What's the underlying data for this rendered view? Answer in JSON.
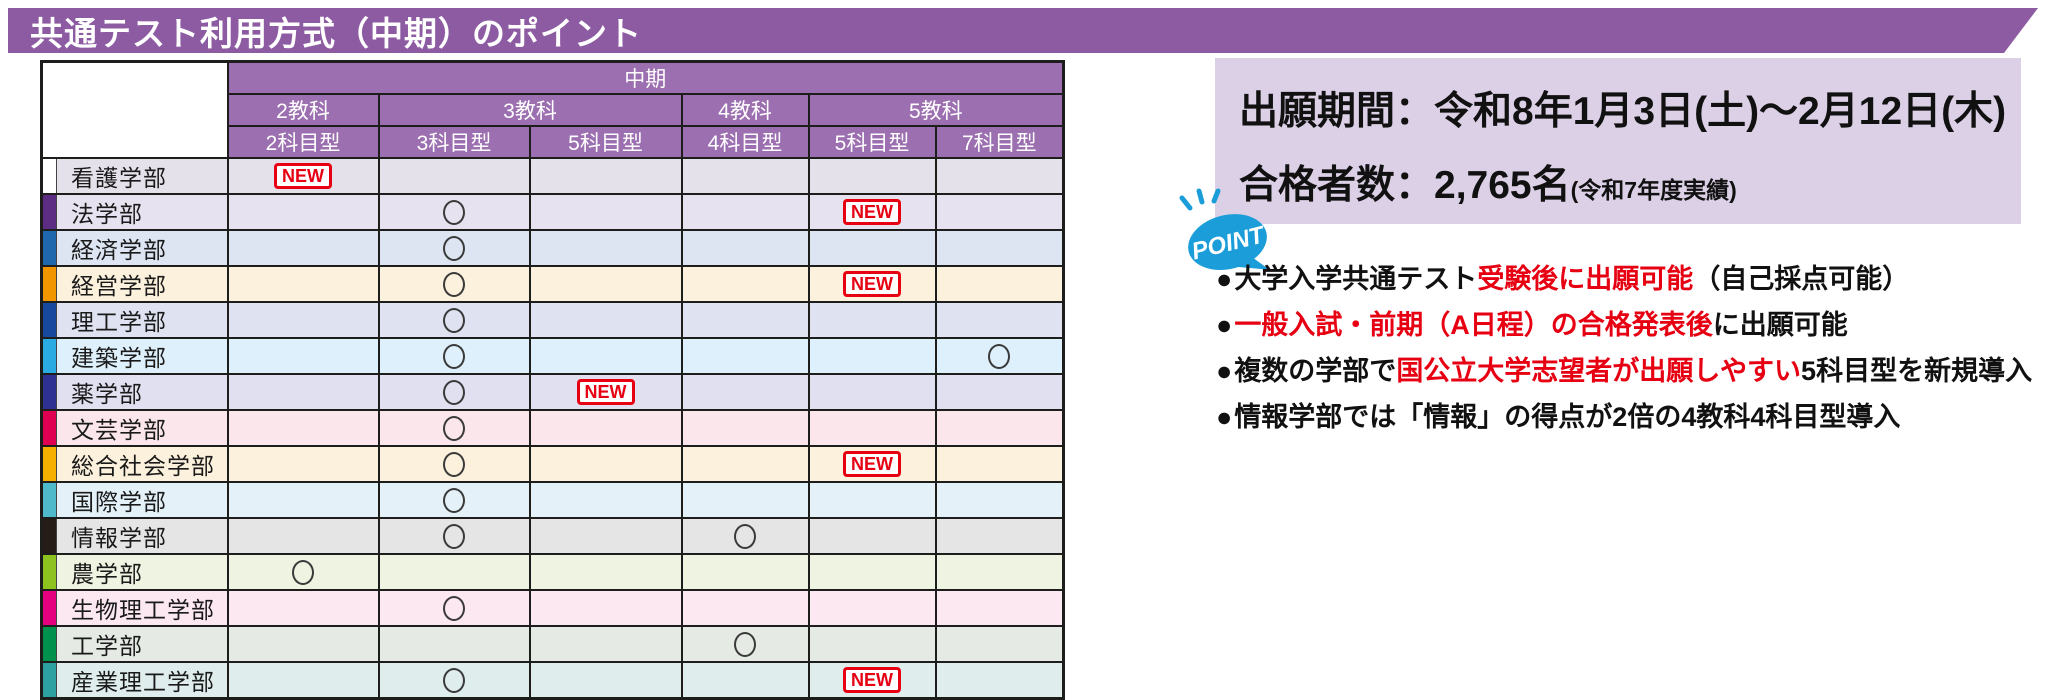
{
  "title": "共通テスト利用方式（中期）のポイント",
  "table": {
    "period_header": "中期",
    "groups": [
      {
        "label": "2教科",
        "span": 1
      },
      {
        "label": "3教科",
        "span": 2
      },
      {
        "label": "4教科",
        "span": 1
      },
      {
        "label": "5教科",
        "span": 2
      }
    ],
    "columns": [
      "2科目型",
      "3科目型",
      "5科目型",
      "4科目型",
      "5科目型",
      "7科目型"
    ],
    "rows": [
      {
        "name": "看護学部",
        "tab_color": "#ffffff",
        "row_color": "#e5e1ea",
        "marks": [
          "NEW",
          "",
          "",
          "",
          "",
          ""
        ]
      },
      {
        "name": "法学部",
        "tab_color": "#5c2d83",
        "row_color": "#e7e2ef",
        "marks": [
          "",
          "○",
          "",
          "",
          "NEW",
          ""
        ]
      },
      {
        "name": "経済学部",
        "tab_color": "#2068ae",
        "row_color": "#dde5f2",
        "marks": [
          "",
          "○",
          "",
          "",
          "",
          ""
        ]
      },
      {
        "name": "経営学部",
        "tab_color": "#f29600",
        "row_color": "#fcf1dc",
        "marks": [
          "",
          "○",
          "",
          "",
          "NEW",
          ""
        ]
      },
      {
        "name": "理工学部",
        "tab_color": "#17499e",
        "row_color": "#dfe3f1",
        "marks": [
          "",
          "○",
          "",
          "",
          "",
          ""
        ]
      },
      {
        "name": "建築学部",
        "tab_color": "#2aabe2",
        "row_color": "#def0fb",
        "marks": [
          "",
          "○",
          "",
          "",
          "",
          "○"
        ]
      },
      {
        "name": "薬学部",
        "tab_color": "#2f3192",
        "row_color": "#e1e0f1",
        "marks": [
          "",
          "○",
          "NEW",
          "",
          "",
          ""
        ]
      },
      {
        "name": "文芸学部",
        "tab_color": "#e00052",
        "row_color": "#fae6eb",
        "marks": [
          "",
          "○",
          "",
          "",
          "",
          ""
        ]
      },
      {
        "name": "総合社会学部",
        "tab_color": "#f6b100",
        "row_color": "#fcf1dc",
        "marks": [
          "",
          "○",
          "",
          "",
          "NEW",
          ""
        ]
      },
      {
        "name": "国際学部",
        "tab_color": "#4fbac9",
        "row_color": "#e4f1f9",
        "marks": [
          "",
          "○",
          "",
          "",
          "",
          ""
        ]
      },
      {
        "name": "情報学部",
        "tab_color": "#251c17",
        "row_color": "#e6e5e6",
        "marks": [
          "",
          "○",
          "",
          "○",
          "",
          ""
        ]
      },
      {
        "name": "農学部",
        "tab_color": "#8dc21f",
        "row_color": "#eff3e1",
        "marks": [
          "○",
          "",
          "",
          "",
          "",
          ""
        ]
      },
      {
        "name": "生物理工学部",
        "tab_color": "#e4007f",
        "row_color": "#fce8f1",
        "marks": [
          "",
          "○",
          "",
          "",
          "",
          ""
        ]
      },
      {
        "name": "工学部",
        "tab_color": "#00914d",
        "row_color": "#e5ebe4",
        "marks": [
          "",
          "",
          "",
          "○",
          "",
          ""
        ]
      },
      {
        "name": "産業理工学部",
        "tab_color": "#2da0a1",
        "row_color": "#dfeeec",
        "marks": [
          "",
          "○",
          "",
          "",
          "NEW",
          ""
        ]
      }
    ]
  },
  "info_panel": {
    "application_period_label": "出願期間：",
    "application_period_value": "令和8年1月3日(土)～2月12日(木)",
    "passers_label": "合格者数：",
    "passers_value": "2,765名",
    "passers_note": "(令和7年度実績)"
  },
  "point_badge": "POINT",
  "bullet_marker": "●",
  "bullets": [
    [
      {
        "t": "大学入学共通テスト",
        "red": false
      },
      {
        "t": "受験後に出願可能",
        "red": true
      },
      {
        "t": "（自己採点可能）",
        "red": false
      }
    ],
    [
      {
        "t": "一般入試・前期（A日程）の合格発表後",
        "red": true
      },
      {
        "t": "に出願可能",
        "red": false
      }
    ],
    [
      {
        "t": "複数の学部で",
        "red": false
      },
      {
        "t": "国公立大学志望者が出願しやすい",
        "red": true
      },
      {
        "t": "5科目型を新規導入",
        "red": false
      }
    ],
    [
      {
        "t": "情報学部では「情報」の得点が2倍の4教科4科目型導入",
        "red": false
      }
    ]
  ],
  "colors": {
    "title_bar": "#8d5ba2",
    "table_header": "#9c6fb0",
    "info_panel_bg": "#dcd0e6",
    "accent_red": "#e60012",
    "point_blue": "#1b9dd9"
  }
}
